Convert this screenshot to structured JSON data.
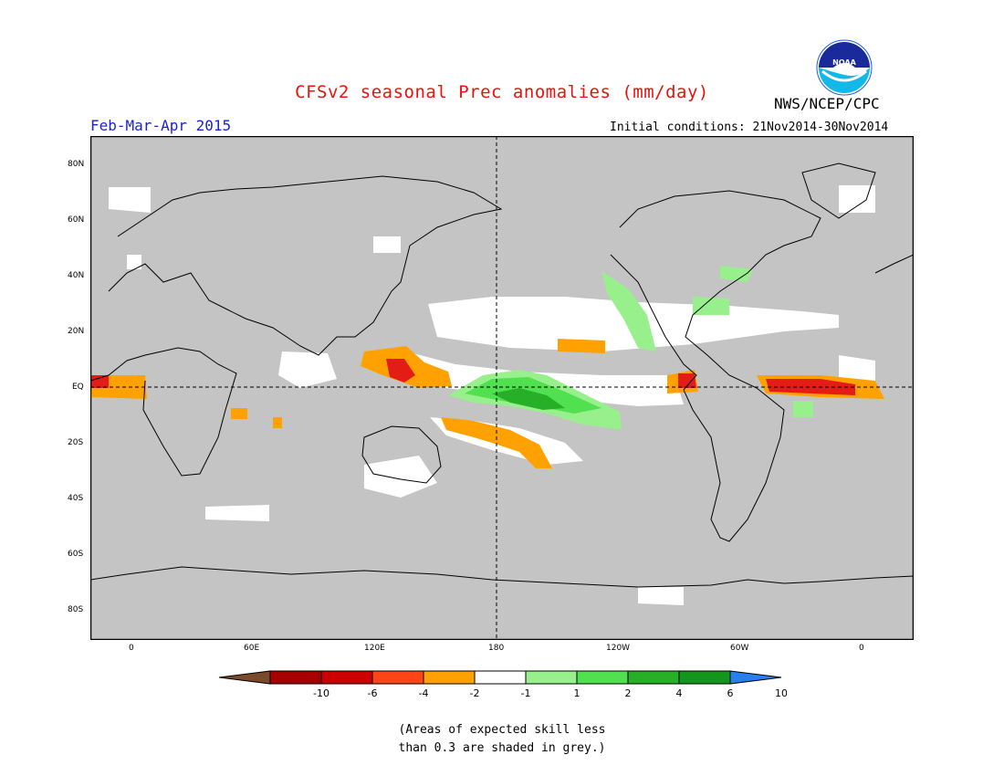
{
  "header": {
    "title": "CFSv2 seasonal Prec anomalies (mm/day)",
    "period": "Feb-Mar-Apr 2015",
    "initial_conditions": "Initial conditions: 21Nov2014-30Nov2014",
    "agency": "NWS/NCEP/CPC",
    "logo_text": "NOAA"
  },
  "map": {
    "lat_ticks": [
      "80N",
      "60N",
      "40N",
      "20N",
      "EQ",
      "20S",
      "40S",
      "60S",
      "80S"
    ],
    "lon_ticks": [
      "0",
      "60E",
      "120E",
      "180",
      "120W",
      "60W",
      "0"
    ],
    "colors": {
      "grey_mask": "#c4c4c4",
      "no_anomaly": "#ffffff",
      "dry_1_2": "#ffa101",
      "dry_2_4": "#ff4418",
      "dry_4_6": "#e41c16",
      "wet_1_2": "#98f08c",
      "wet_2_4": "#50e050",
      "wet_4_6": "#27b027",
      "wet_6_10": "#14961e"
    }
  },
  "legend": {
    "labels": [
      "-10",
      "-6",
      "-4",
      "-2",
      "-1",
      "1",
      "2",
      "4",
      "6",
      "10"
    ],
    "colors": [
      "#7a4a2a",
      "#a60000",
      "#cc0000",
      "#ff4418",
      "#ffa101",
      "#ffffff",
      "#98f08c",
      "#50e050",
      "#27b027",
      "#14961e",
      "#2a7ff0"
    ]
  },
  "notes": {
    "line1": "(Areas of expected skill less",
    "line2": "than 0.3 are shaded in grey.)"
  }
}
